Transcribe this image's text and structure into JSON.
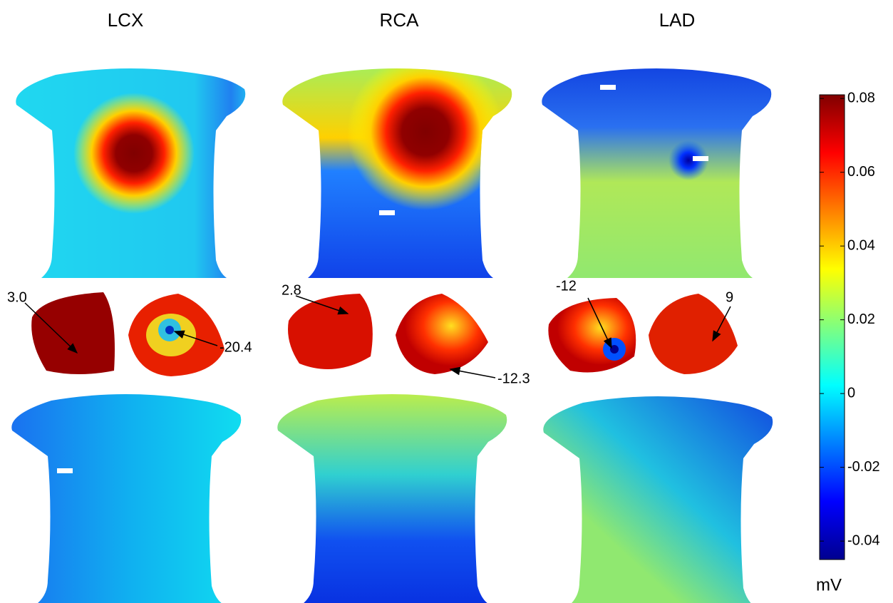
{
  "columns": [
    {
      "title": "LCX"
    },
    {
      "title": "RCA"
    },
    {
      "title": "LAD"
    }
  ],
  "annotations": [
    {
      "text": "3.0"
    },
    {
      "text": "-20.4"
    },
    {
      "text": "2.8"
    },
    {
      "text": "-12.3"
    },
    {
      "text": "-12"
    },
    {
      "text": "9"
    }
  ],
  "colorbar": {
    "lim": [
      -0.045,
      0.081
    ],
    "ticks": [
      -0.04,
      -0.02,
      0,
      0.02,
      0.04,
      0.06,
      0.08
    ],
    "unit": "mV"
  }
}
